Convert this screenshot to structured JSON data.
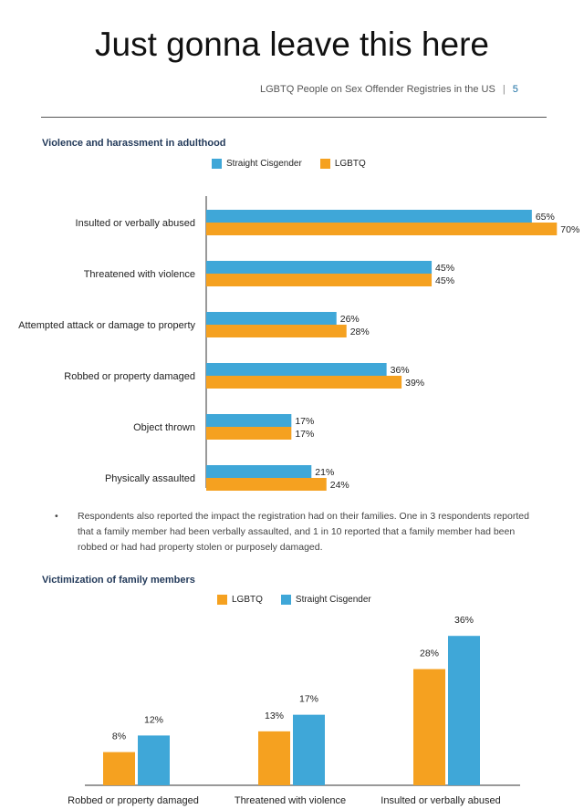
{
  "meme_title": "Just gonna leave this here",
  "header": {
    "report_title": "LGBTQ People on Sex Offender Registries in the US",
    "separator": "|",
    "page_number": "5"
  },
  "colors": {
    "straight": "#3fa7d8",
    "lgbtq": "#f5a120"
  },
  "bullet_text": "Respondents also reported the impact the registration had on their families. One in 3 respondents reported that a family member had been verbally assaulted, and 1 in 10 reported that a family member had been robbed or had had property stolen or purposely damaged.",
  "chart_data": [
    {
      "type": "bar",
      "orientation": "horizontal",
      "title": "Violence and harassment in adulthood",
      "legend": [
        "Straight Cisgender",
        "LGBTQ"
      ],
      "categories": [
        "Insulted or verbally abused",
        "Threatened with violence",
        "Attempted attack or damage to property",
        "Robbed or property damaged",
        "Object thrown",
        "Physically assaulted"
      ],
      "series": [
        {
          "name": "Straight Cisgender",
          "values": [
            65,
            45,
            26,
            36,
            17,
            21
          ],
          "labels": [
            "65%",
            "45%",
            "26%",
            "36%",
            "17%",
            "21%"
          ]
        },
        {
          "name": "LGBTQ",
          "values": [
            70,
            45,
            28,
            39,
            17,
            24
          ],
          "labels": [
            "70%",
            "45%",
            "28%",
            "39%",
            "17%",
            "24%"
          ]
        }
      ],
      "xlim": [
        0,
        70
      ]
    },
    {
      "type": "bar",
      "orientation": "vertical",
      "title": "Victimization of family members",
      "legend": [
        "LGBTQ",
        "Straight Cisgender"
      ],
      "categories": [
        "Robbed or property damaged",
        "Threatened with violence",
        "Insulted or verbally abused"
      ],
      "series": [
        {
          "name": "LGBTQ",
          "values": [
            8,
            13,
            28
          ],
          "labels": [
            "8%",
            "13%",
            "28%"
          ]
        },
        {
          "name": "Straight Cisgender",
          "values": [
            12,
            17,
            36
          ],
          "labels": [
            "12%",
            "17%",
            "36%"
          ]
        }
      ],
      "ylim": [
        0,
        36
      ]
    }
  ]
}
